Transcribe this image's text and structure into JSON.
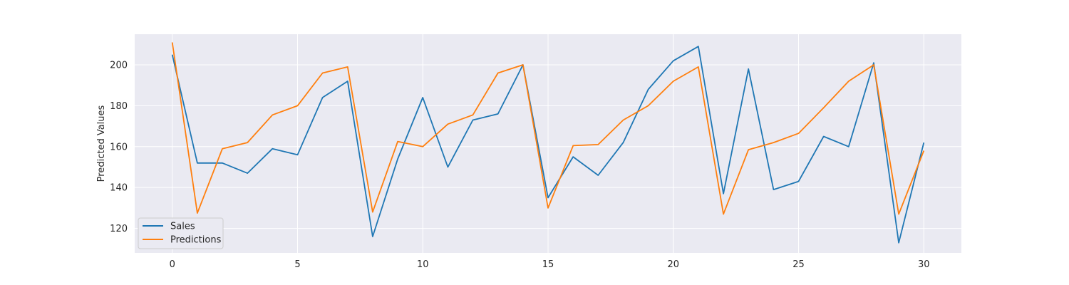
{
  "chart_data": {
    "type": "line",
    "title": "",
    "xlabel": "",
    "ylabel": "Predicted Values",
    "xlim": [
      -1.5,
      31.5
    ],
    "ylim": [
      108,
      215
    ],
    "x_ticks": [
      0,
      5,
      10,
      15,
      20,
      25,
      30
    ],
    "y_ticks": [
      120,
      140,
      160,
      180,
      200
    ],
    "grid": true,
    "legend_placement": "lower-left",
    "x": [
      0,
      1,
      2,
      3,
      4,
      5,
      6,
      7,
      8,
      9,
      10,
      11,
      12,
      13,
      14,
      15,
      16,
      17,
      18,
      19,
      20,
      21,
      22,
      23,
      24,
      25,
      26,
      27,
      28,
      29,
      30
    ],
    "series": [
      {
        "name": "Sales",
        "color": "#1f77b4",
        "values": [
          205,
          152,
          152,
          147,
          159,
          156,
          184,
          192,
          116,
          154,
          184,
          150,
          173,
          176,
          200,
          135,
          155,
          146,
          162,
          188,
          202,
          209,
          137,
          198,
          139,
          143,
          165,
          160,
          201,
          113,
          162
        ]
      },
      {
        "name": "Predictions",
        "color": "#ff7f0e",
        "values": [
          211,
          127.5,
          159,
          162,
          175.5,
          180,
          196,
          199,
          128,
          162.5,
          160,
          171,
          175.5,
          196,
          200,
          130,
          160.5,
          161,
          173,
          180,
          192,
          199,
          127,
          158.5,
          162,
          166.5,
          179,
          192,
          200,
          127,
          158
        ]
      }
    ]
  }
}
